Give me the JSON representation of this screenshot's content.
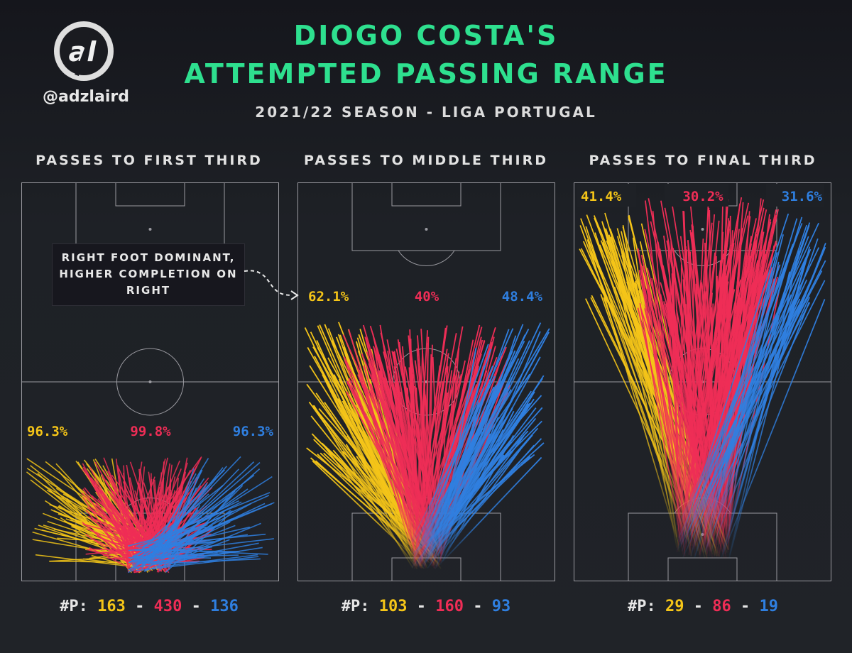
{
  "header": {
    "title_line1": "DIOGO COSTA'S",
    "title_line2": "ATTEMPTED PASSING RANGE",
    "subtitle": "2021/22 SEASON - LIGA PORTUGAL",
    "logo_text": "al",
    "handle": "@adzlaird"
  },
  "colors": {
    "title": "#2ee08f",
    "left": "#f5c518",
    "centre": "#ef2d56",
    "right": "#2f7fe0",
    "pitch_line": "#9a9aa0",
    "background": "#1e2126"
  },
  "annotation": {
    "line1": "RIGHT FOOT DOMINANT,",
    "line2": "HIGHER COMPLETION ON",
    "line3": "RIGHT"
  },
  "chart_data": [
    {
      "type": "pitch_pass_map",
      "title": "PASSES TO FIRST THIRD",
      "counts_label": "#P:",
      "series": [
        {
          "name": "Left",
          "color": "#f5c518",
          "completion": "96.3%",
          "passes": 163
        },
        {
          "name": "Centre",
          "color": "#ef2d56",
          "completion": "99.8%",
          "passes": 430
        },
        {
          "name": "Right",
          "color": "#2f7fe0",
          "completion": "96.3%",
          "passes": 136
        }
      ]
    },
    {
      "type": "pitch_pass_map",
      "title": "PASSES TO MIDDLE THIRD",
      "counts_label": "#P:",
      "series": [
        {
          "name": "Left",
          "color": "#f5c518",
          "completion": "62.1%",
          "passes": 103
        },
        {
          "name": "Centre",
          "color": "#ef2d56",
          "completion": "40%",
          "passes": 160
        },
        {
          "name": "Right",
          "color": "#2f7fe0",
          "completion": "48.4%",
          "passes": 93
        }
      ]
    },
    {
      "type": "pitch_pass_map",
      "title": "PASSES TO FINAL THIRD",
      "counts_label": "#P:",
      "series": [
        {
          "name": "Left",
          "color": "#f5c518",
          "completion": "41.4%",
          "passes": 29
        },
        {
          "name": "Centre",
          "color": "#ef2d56",
          "completion": "30.2%",
          "passes": 86
        },
        {
          "name": "Right",
          "color": "#2f7fe0",
          "completion": "31.6%",
          "passes": 19
        }
      ]
    }
  ]
}
